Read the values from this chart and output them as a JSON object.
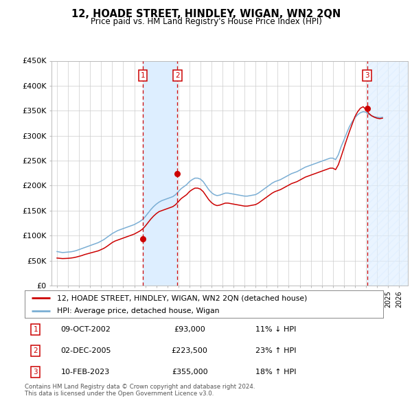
{
  "title": "12, HOADE STREET, HINDLEY, WIGAN, WN2 2QN",
  "subtitle": "Price paid vs. HM Land Registry's House Price Index (HPI)",
  "ylabel_ticks": [
    "£0",
    "£50K",
    "£100K",
    "£150K",
    "£200K",
    "£250K",
    "£300K",
    "£350K",
    "£400K",
    "£450K"
  ],
  "ytick_values": [
    0,
    50000,
    100000,
    150000,
    200000,
    250000,
    300000,
    350000,
    400000,
    450000
  ],
  "ylim": [
    0,
    450000
  ],
  "xlim_start": 1994.5,
  "xlim_end": 2026.8,
  "transactions": [
    {
      "num": 1,
      "date_str": "09-OCT-2002",
      "price": 93000,
      "pct": "11%",
      "dir": "↓",
      "year_float": 2002.77
    },
    {
      "num": 2,
      "date_str": "02-DEC-2005",
      "price": 223500,
      "pct": "23%",
      "dir": "↑",
      "year_float": 2005.92
    },
    {
      "num": 3,
      "date_str": "10-FEB-2023",
      "price": 355000,
      "pct": "18%",
      "dir": "↑",
      "year_float": 2023.11
    }
  ],
  "legend_line1": "12, HOADE STREET, HINDLEY, WIGAN, WN2 2QN (detached house)",
  "legend_line2": "HPI: Average price, detached house, Wigan",
  "footer1": "Contains HM Land Registry data © Crown copyright and database right 2024.",
  "footer2": "This data is licensed under the Open Government Licence v3.0.",
  "red_line_color": "#cc0000",
  "blue_line_color": "#7aaed4",
  "shade_color": "#ddeeff",
  "marker_box_color": "#cc0000",
  "hpi_data_x": [
    1995.0,
    1995.25,
    1995.5,
    1995.75,
    1996.0,
    1996.25,
    1996.5,
    1996.75,
    1997.0,
    1997.25,
    1997.5,
    1997.75,
    1998.0,
    1998.25,
    1998.5,
    1998.75,
    1999.0,
    1999.25,
    1999.5,
    1999.75,
    2000.0,
    2000.25,
    2000.5,
    2000.75,
    2001.0,
    2001.25,
    2001.5,
    2001.75,
    2002.0,
    2002.25,
    2002.5,
    2002.75,
    2003.0,
    2003.25,
    2003.5,
    2003.75,
    2004.0,
    2004.25,
    2004.5,
    2004.75,
    2005.0,
    2005.25,
    2005.5,
    2005.75,
    2006.0,
    2006.25,
    2006.5,
    2006.75,
    2007.0,
    2007.25,
    2007.5,
    2007.75,
    2008.0,
    2008.25,
    2008.5,
    2008.75,
    2009.0,
    2009.25,
    2009.5,
    2009.75,
    2010.0,
    2010.25,
    2010.5,
    2010.75,
    2011.0,
    2011.25,
    2011.5,
    2011.75,
    2012.0,
    2012.25,
    2012.5,
    2012.75,
    2013.0,
    2013.25,
    2013.5,
    2013.75,
    2014.0,
    2014.25,
    2014.5,
    2014.75,
    2015.0,
    2015.25,
    2015.5,
    2015.75,
    2016.0,
    2016.25,
    2016.5,
    2016.75,
    2017.0,
    2017.25,
    2017.5,
    2017.75,
    2018.0,
    2018.25,
    2018.5,
    2018.75,
    2019.0,
    2019.25,
    2019.5,
    2019.75,
    2020.0,
    2020.25,
    2020.5,
    2020.75,
    2021.0,
    2021.25,
    2021.5,
    2021.75,
    2022.0,
    2022.25,
    2022.5,
    2022.75,
    2023.0,
    2023.25,
    2023.5,
    2023.75,
    2024.0,
    2024.25,
    2024.5
  ],
  "hpi_blue_y": [
    68000,
    67000,
    66000,
    66500,
    67000,
    67500,
    68500,
    70000,
    72000,
    74000,
    76000,
    78000,
    80000,
    82000,
    84000,
    86000,
    89000,
    92000,
    96000,
    100000,
    104000,
    107000,
    110000,
    112000,
    114000,
    116000,
    118000,
    120000,
    122000,
    125000,
    128000,
    132000,
    138000,
    145000,
    152000,
    158000,
    163000,
    167000,
    170000,
    172000,
    174000,
    176000,
    178000,
    182000,
    188000,
    194000,
    198000,
    202000,
    208000,
    212000,
    215000,
    215000,
    213000,
    208000,
    200000,
    192000,
    186000,
    182000,
    180000,
    181000,
    183000,
    185000,
    185000,
    184000,
    183000,
    182000,
    181000,
    180000,
    179000,
    179000,
    180000,
    181000,
    182000,
    185000,
    189000,
    193000,
    197000,
    201000,
    205000,
    208000,
    210000,
    212000,
    215000,
    218000,
    221000,
    224000,
    226000,
    228000,
    231000,
    234000,
    237000,
    239000,
    241000,
    243000,
    245000,
    247000,
    249000,
    251000,
    253000,
    255000,
    255000,
    252000,
    262000,
    278000,
    291000,
    305000,
    318000,
    328000,
    336000,
    342000,
    346000,
    348000,
    347000,
    343000,
    340000,
    338000,
    337000,
    336000,
    337000
  ],
  "hpi_red_y": [
    55000,
    54500,
    54000,
    54200,
    54500,
    55000,
    55800,
    57000,
    58500,
    60000,
    62000,
    63500,
    65000,
    66500,
    68000,
    69500,
    72000,
    74500,
    78000,
    82000,
    86000,
    89000,
    91000,
    93000,
    95000,
    97000,
    99000,
    101000,
    103000,
    106000,
    109000,
    113000,
    119000,
    126000,
    133000,
    139000,
    144000,
    148000,
    150000,
    152000,
    154000,
    156000,
    158000,
    162000,
    168000,
    174000,
    178000,
    182000,
    188000,
    192000,
    195000,
    195000,
    193000,
    188000,
    180000,
    172000,
    166000,
    162000,
    160000,
    161000,
    163000,
    165000,
    165000,
    164000,
    163000,
    162000,
    161000,
    160000,
    159000,
    159000,
    160000,
    161000,
    162000,
    165000,
    169000,
    173000,
    177000,
    181000,
    185000,
    188000,
    190000,
    192000,
    195000,
    198000,
    201000,
    204000,
    206000,
    208000,
    211000,
    214000,
    217000,
    219000,
    221000,
    223000,
    225000,
    227000,
    229000,
    231000,
    233000,
    235000,
    235000,
    232000,
    242000,
    258000,
    275000,
    292000,
    308000,
    323000,
    338000,
    348000,
    355000,
    358000,
    352000,
    345000,
    340000,
    337000,
    335000,
    334000,
    335000
  ]
}
